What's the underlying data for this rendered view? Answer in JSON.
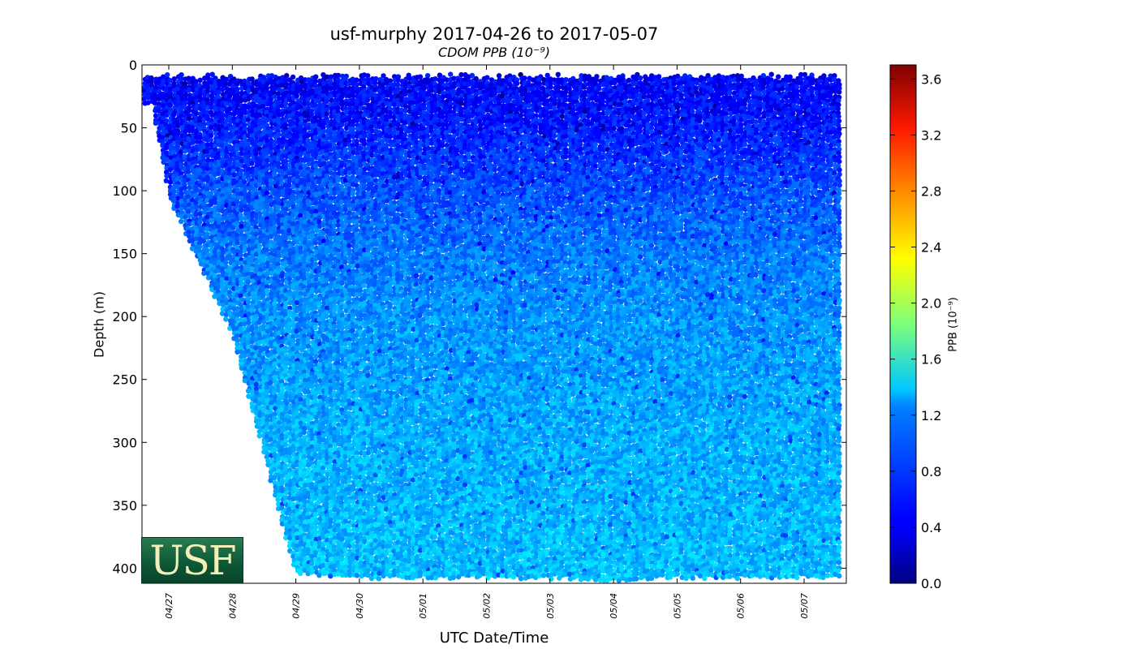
{
  "chart_data": {
    "type": "scatter",
    "title": "usf-murphy 2017-04-26 to 2017-05-07",
    "subtitle": "CDOM PPB (10⁻⁹)",
    "xlabel": "UTC Date/Time",
    "ylabel": "Depth (m)",
    "x_tick_labels": [
      "04/27",
      "04/28",
      "04/29",
      "04/30",
      "05/01",
      "05/02",
      "05/03",
      "05/04",
      "05/05",
      "05/06",
      "05/07"
    ],
    "x_range": [
      "2017-04-26T20:00",
      "2017-05-07T14:00"
    ],
    "ylim": [
      412,
      0
    ],
    "y_ticks": [
      0,
      50,
      100,
      150,
      200,
      250,
      300,
      350,
      400
    ],
    "y_inverted": true,
    "colorbar": {
      "label": "PPB (10⁻⁹)",
      "range": [
        0.0,
        3.7
      ],
      "ticks": [
        "0.0",
        "0.4",
        "0.8",
        "1.2",
        "1.6",
        "2.0",
        "2.4",
        "2.8",
        "3.2",
        "3.6"
      ],
      "colormap": "jet"
    },
    "series": [
      {
        "points_summary": "dense glider profiles; values ~0.5 near surface, ~1.0-1.2 at depth",
        "profiles": [
          {
            "date": "04/27",
            "max_depth": 105
          },
          {
            "date": "04/28",
            "max_depth": 215
          },
          {
            "date": "04/29",
            "max_depth": 405
          },
          {
            "date": "04/30",
            "max_depth": 408
          },
          {
            "date": "05/01",
            "max_depth": 408
          },
          {
            "date": "05/02",
            "max_depth": 408
          },
          {
            "date": "05/03",
            "max_depth": 408
          },
          {
            "date": "05/04",
            "max_depth": 410
          },
          {
            "date": "05/05",
            "max_depth": 408
          },
          {
            "date": "05/06",
            "max_depth": 408
          },
          {
            "date": "05/07",
            "max_depth": 408
          }
        ],
        "value_by_depth": [
          [
            10,
            0.45
          ],
          [
            50,
            0.55
          ],
          [
            100,
            0.75
          ],
          [
            150,
            0.9
          ],
          [
            200,
            1.0
          ],
          [
            300,
            1.1
          ],
          [
            400,
            1.15
          ]
        ]
      }
    ],
    "grid": false,
    "legend": "none"
  },
  "logo": {
    "text": "USF"
  },
  "colors": {
    "axes": "#000000",
    "background": "#ffffff"
  }
}
